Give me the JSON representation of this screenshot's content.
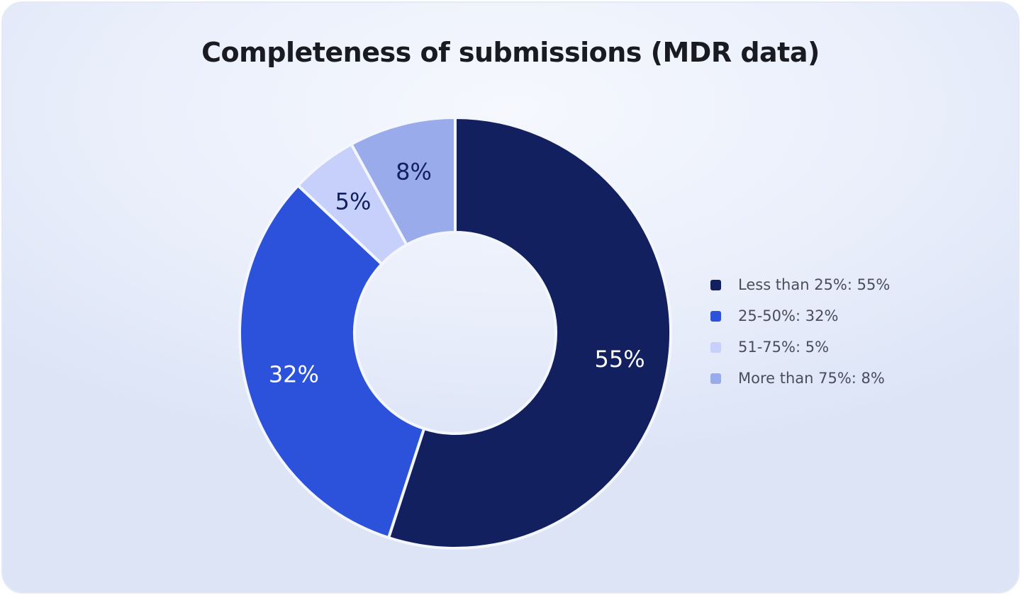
{
  "chart_data": {
    "type": "pie",
    "title": "Completeness of submissions (MDR data)",
    "categories": [
      "Less than 25%",
      "25-50%",
      "51-75%",
      "More than 75%"
    ],
    "values": [
      55,
      32,
      5,
      8
    ],
    "data_labels": [
      "55%",
      "32%",
      "5%",
      "8%"
    ],
    "legend_labels": [
      "Less than 25%: 55%",
      "25-50%: 32%",
      "51-75%: 5%",
      "More than 75%: 8%"
    ],
    "colors": [
      "#13205f",
      "#2c52dc",
      "#c6d0fa",
      "#9aabeb"
    ],
    "label_colors": [
      "#ffffff",
      "#ffffff",
      "#13205f",
      "#13205f"
    ],
    "donut": true,
    "legend_position": "right"
  }
}
